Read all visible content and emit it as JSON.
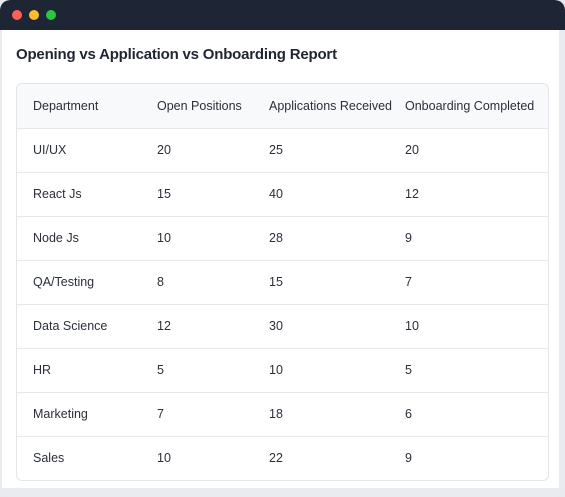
{
  "window": {
    "controls": [
      "close",
      "minimize",
      "maximize"
    ]
  },
  "report": {
    "title": "Opening vs Application vs Onboarding Report",
    "columns": [
      "Department",
      "Open Positions",
      "Applications Received",
      "Onboarding Completed"
    ],
    "rows": [
      [
        "UI/UX",
        "20",
        "25",
        "20"
      ],
      [
        "React Js",
        "15",
        "40",
        "12"
      ],
      [
        "Node Js",
        "10",
        "28",
        "9"
      ],
      [
        "QA/Testing",
        "8",
        "15",
        "7"
      ],
      [
        "Data Science",
        "12",
        "30",
        "10"
      ],
      [
        "HR",
        "5",
        "10",
        "5"
      ],
      [
        "Marketing",
        "7",
        "18",
        "6"
      ],
      [
        "Sales",
        "10",
        "22",
        "9"
      ]
    ]
  },
  "colors": {
    "titlebar": "#1e2535",
    "close": "#ff5f57",
    "minimize": "#febc2e",
    "maximize": "#28c840"
  }
}
